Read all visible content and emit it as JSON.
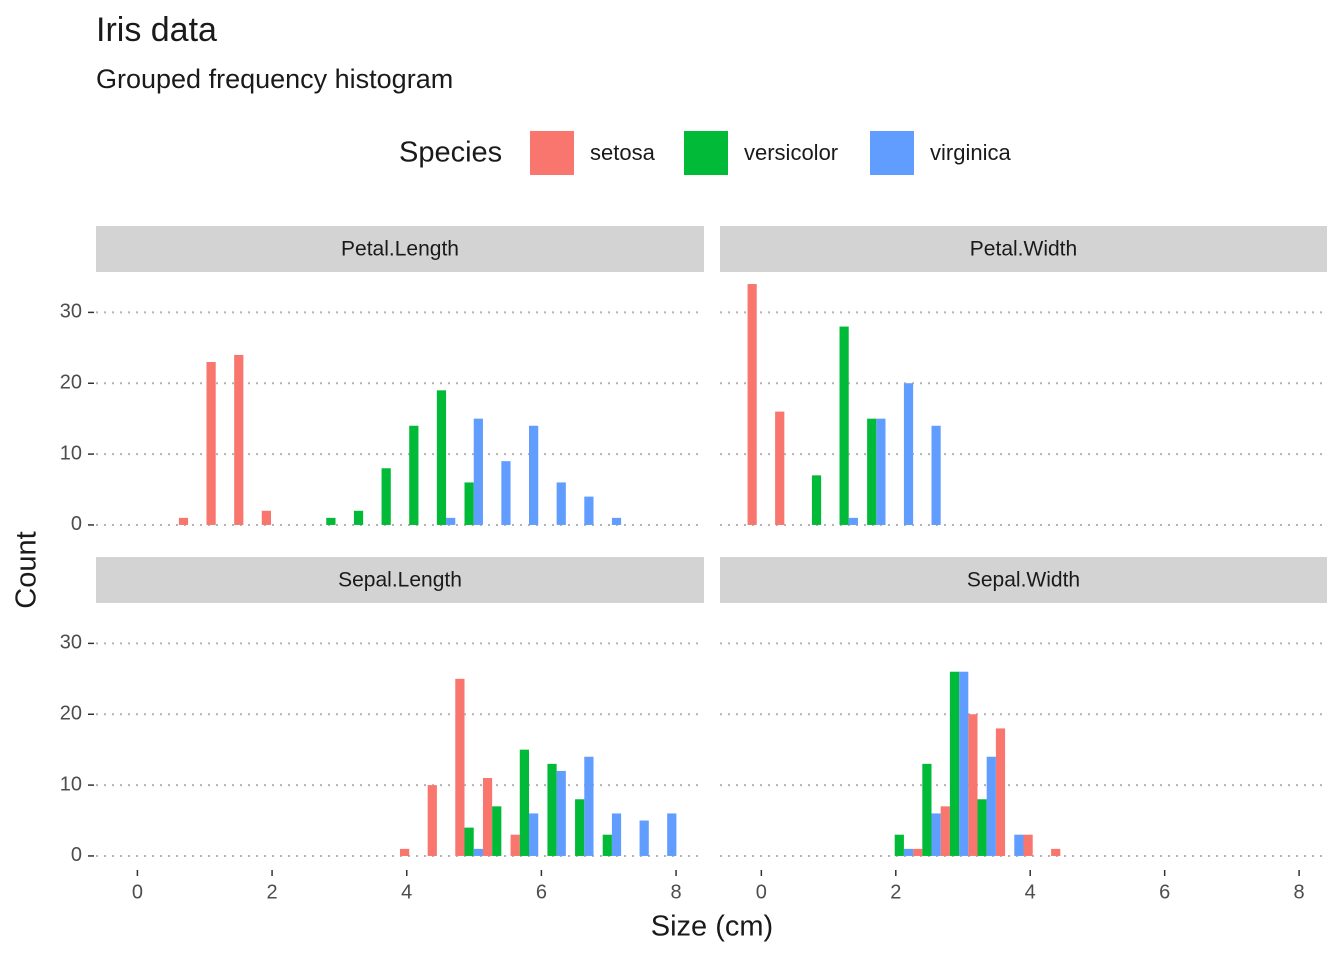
{
  "title": "Iris data",
  "subtitle": "Grouped frequency histogram",
  "legend_title": "Species",
  "x_label": "Size (cm)",
  "y_label": "Count",
  "chart_data": [
    {
      "type": "histogram",
      "title": "Petal.Length",
      "bins": [
        -0.205,
        0.205,
        0.616,
        1.026,
        1.437,
        1.847,
        2.258,
        2.668,
        3.079,
        3.489,
        3.9,
        4.311,
        4.721,
        5.132,
        5.542,
        5.953,
        6.363,
        6.774,
        7.184,
        7.595,
        8.005
      ],
      "series": [
        {
          "name": "setosa",
          "color": "#F8766D",
          "values": [
            0,
            0,
            1,
            23,
            24,
            2,
            0,
            0,
            0,
            0,
            0,
            0,
            0,
            0,
            0,
            0,
            0,
            0,
            0,
            0
          ]
        },
        {
          "name": "versicolor",
          "color": "#00BA38",
          "values": [
            0,
            0,
            0,
            0,
            0,
            0,
            0,
            1,
            2,
            8,
            14,
            19,
            6,
            0,
            0,
            0,
            0,
            0,
            0,
            0
          ]
        },
        {
          "name": "virginica",
          "color": "#619CFF",
          "values": [
            0,
            0,
            0,
            0,
            0,
            0,
            0,
            0,
            0,
            0,
            0,
            1,
            15,
            9,
            14,
            6,
            4,
            1,
            0,
            0
          ]
        }
      ],
      "xlim": [
        -0.615,
        8.415
      ],
      "xticks": [
        0,
        2,
        4,
        6,
        8
      ],
      "ylim": [
        -1.7,
        35.7
      ],
      "yticks": [
        0,
        10,
        20,
        30
      ],
      "grid": true
    },
    {
      "type": "histogram",
      "title": "Petal.Width",
      "bins": [
        -0.205,
        0.205,
        0.616,
        1.026,
        1.437,
        1.847,
        2.258,
        2.668,
        3.079,
        3.489,
        3.9,
        4.311,
        4.721,
        5.132,
        5.542,
        5.953,
        6.363,
        6.774,
        7.184,
        7.595,
        8.005
      ],
      "series": [
        {
          "name": "setosa",
          "color": "#F8766D",
          "values": [
            34,
            16,
            0,
            0,
            0,
            0,
            0,
            0,
            0,
            0,
            0,
            0,
            0,
            0,
            0,
            0,
            0,
            0,
            0,
            0
          ]
        },
        {
          "name": "versicolor",
          "color": "#00BA38",
          "values": [
            0,
            0,
            7,
            28,
            15,
            0,
            0,
            0,
            0,
            0,
            0,
            0,
            0,
            0,
            0,
            0,
            0,
            0,
            0,
            0
          ]
        },
        {
          "name": "virginica",
          "color": "#619CFF",
          "values": [
            0,
            0,
            0,
            1,
            15,
            20,
            14,
            0,
            0,
            0,
            0,
            0,
            0,
            0,
            0,
            0,
            0,
            0,
            0,
            0
          ]
        }
      ],
      "xlim": [
        -0.615,
        8.415
      ],
      "xticks": [
        0,
        2,
        4,
        6,
        8
      ],
      "ylim": [
        -1.7,
        35.7
      ],
      "yticks": [
        0,
        10,
        20,
        30
      ],
      "grid": true
    },
    {
      "type": "histogram",
      "title": "Sepal.Length",
      "bins": [
        -0.205,
        0.205,
        0.616,
        1.026,
        1.437,
        1.847,
        2.258,
        2.668,
        3.079,
        3.489,
        3.9,
        4.311,
        4.721,
        5.132,
        5.542,
        5.953,
        6.363,
        6.774,
        7.184,
        7.595,
        8.005
      ],
      "series": [
        {
          "name": "setosa",
          "color": "#F8766D",
          "values": [
            0,
            0,
            0,
            0,
            0,
            0,
            0,
            0,
            0,
            0,
            1,
            10,
            25,
            11,
            3,
            0,
            0,
            0,
            0,
            0
          ]
        },
        {
          "name": "versicolor",
          "color": "#00BA38",
          "values": [
            0,
            0,
            0,
            0,
            0,
            0,
            0,
            0,
            0,
            0,
            0,
            0,
            4,
            7,
            15,
            13,
            8,
            3,
            0,
            0
          ]
        },
        {
          "name": "virginica",
          "color": "#619CFF",
          "values": [
            0,
            0,
            0,
            0,
            0,
            0,
            0,
            0,
            0,
            0,
            0,
            0,
            1,
            0,
            6,
            12,
            14,
            6,
            5,
            6
          ]
        }
      ],
      "xlim": [
        -0.615,
        8.415
      ],
      "xticks": [
        0,
        2,
        4,
        6,
        8
      ],
      "ylim": [
        -1.7,
        35.7
      ],
      "yticks": [
        0,
        10,
        20,
        30
      ],
      "grid": true
    },
    {
      "type": "histogram",
      "title": "Sepal.Width",
      "bins": [
        -0.205,
        0.205,
        0.616,
        1.026,
        1.437,
        1.847,
        2.258,
        2.668,
        3.079,
        3.489,
        3.9,
        4.311,
        4.721,
        5.132,
        5.542,
        5.953,
        6.363,
        6.774,
        7.184,
        7.595,
        8.005
      ],
      "series": [
        {
          "name": "setosa",
          "color": "#F8766D",
          "values": [
            0,
            0,
            0,
            0,
            0,
            0,
            1,
            7,
            20,
            18,
            3,
            1,
            0,
            0,
            0,
            0,
            0,
            0,
            0,
            0
          ]
        },
        {
          "name": "versicolor",
          "color": "#00BA38",
          "values": [
            0,
            0,
            0,
            0,
            0,
            3,
            13,
            26,
            8,
            0,
            0,
            0,
            0,
            0,
            0,
            0,
            0,
            0,
            0,
            0
          ]
        },
        {
          "name": "virginica",
          "color": "#619CFF",
          "values": [
            0,
            0,
            0,
            0,
            0,
            1,
            6,
            26,
            14,
            3,
            0,
            0,
            0,
            0,
            0,
            0,
            0,
            0,
            0,
            0
          ]
        }
      ],
      "xlim": [
        -0.615,
        8.415
      ],
      "xticks": [
        0,
        2,
        4,
        6,
        8
      ],
      "ylim": [
        -1.7,
        35.7
      ],
      "yticks": [
        0,
        10,
        20,
        30
      ],
      "grid": true
    }
  ]
}
